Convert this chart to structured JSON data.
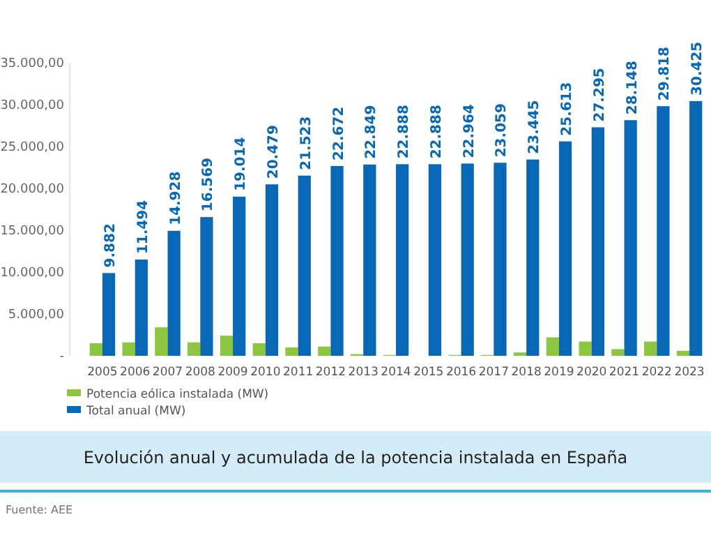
{
  "chart_data": {
    "type": "bar",
    "title": "Evolución anual y acumulada de la potencia instalada en España",
    "categories": [
      "2005",
      "2006",
      "2007",
      "2008",
      "2009",
      "2010",
      "2011",
      "2012",
      "2013",
      "2014",
      "2015",
      "2016",
      "2017",
      "2018",
      "2019",
      "2020",
      "2021",
      "2022",
      "2023"
    ],
    "series": [
      {
        "name": "Potencia eólica instalada (MW)",
        "color": "#8cc63f",
        "values": [
          1500,
          1600,
          3400,
          1600,
          2400,
          1500,
          1000,
          1100,
          200,
          100,
          0,
          100,
          100,
          400,
          2200,
          1700,
          800,
          1700,
          600
        ]
      },
      {
        "name": "Total anual (MW)",
        "color": "#0868b6",
        "values": [
          9882,
          11494,
          14928,
          16569,
          19014,
          20479,
          21523,
          22672,
          22849,
          22888,
          22888,
          22964,
          23059,
          23445,
          25613,
          27295,
          28148,
          29818,
          30425
        ],
        "value_labels": [
          "9.882",
          "11.494",
          "14.928",
          "16.569",
          "19.014",
          "20.479",
          "21.523",
          "22.672",
          "22.849",
          "22.888",
          "22.888",
          "22.964",
          "23.059",
          "23.445",
          "25.613",
          "27.295",
          "28.148",
          "29.818",
          "30.425"
        ]
      }
    ],
    "ylim": [
      0,
      35000
    ],
    "yticks": [
      {
        "value": 0,
        "label": "-"
      },
      {
        "value": 5000,
        "label": "5.000,00"
      },
      {
        "value": 10000,
        "label": "10.000,00"
      },
      {
        "value": 15000,
        "label": "15.000,00"
      },
      {
        "value": 20000,
        "label": "20.000,00"
      },
      {
        "value": 25000,
        "label": "25.000,00"
      },
      {
        "value": 30000,
        "label": "30.000,00"
      },
      {
        "value": 35000,
        "label": "35.000,00"
      }
    ],
    "grid": false,
    "legend": "bottom left",
    "annotations": [
      "Fuente: AEE"
    ]
  }
}
